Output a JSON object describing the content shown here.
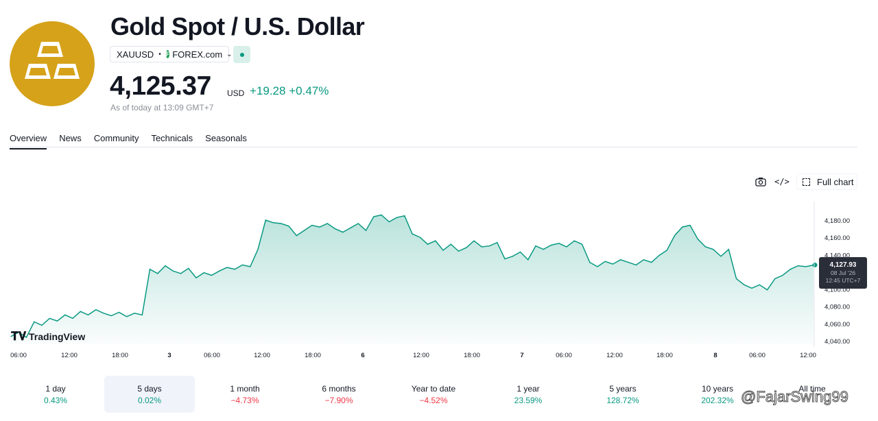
{
  "header": {
    "title": "Gold Spot / U.S. Dollar",
    "symbol": "XAUUSD",
    "exchange": "FOREX.com",
    "price": "4,125.37",
    "currency": "USD",
    "change": "+19.28",
    "change_pct": "+0.47%",
    "as_of": "As of today at 13:09 GMT+7"
  },
  "tabs": [
    "Overview",
    "News",
    "Community",
    "Technicals",
    "Seasonals"
  ],
  "toolbar": {
    "full_chart": "Full chart"
  },
  "chart_data": {
    "type": "area",
    "brand": "TradingView",
    "x_ticks": [
      "06:00",
      "12:00",
      "18:00",
      "3",
      "06:00",
      "12:00",
      "18:00",
      "6",
      "12:00",
      "18:00",
      "7",
      "06:00",
      "12:00",
      "18:00",
      "8",
      "06:00",
      "12:00"
    ],
    "y_ticks": [
      "4,180.00",
      "4,160.00",
      "4,140.00",
      "4,120.00",
      "4,100.00",
      "4,080.00",
      "4,060.00",
      "4,040.00"
    ],
    "ylim": [
      4040,
      4180
    ],
    "y_values": [
      4045,
      4050,
      4044,
      4062,
      4058,
      4066,
      4063,
      4070,
      4066,
      4074,
      4070,
      4076,
      4072,
      4069,
      4073,
      4068,
      4072,
      4070,
      4123,
      4118,
      4127,
      4121,
      4118,
      4124,
      4113,
      4119,
      4116,
      4121,
      4125,
      4123,
      4128,
      4126,
      4146,
      4180,
      4177,
      4176,
      4173,
      4162,
      4168,
      4174,
      4172,
      4176,
      4170,
      4166,
      4171,
      4176,
      4168,
      4184,
      4186,
      4178,
      4183,
      4185,
      4164,
      4160,
      4152,
      4156,
      4145,
      4152,
      4144,
      4148,
      4156,
      4149,
      4150,
      4154,
      4135,
      4138,
      4143,
      4134,
      4150,
      4146,
      4151,
      4153,
      4149,
      4156,
      4152,
      4131,
      4126,
      4132,
      4129,
      4134,
      4131,
      4128,
      4134,
      4131,
      4139,
      4145,
      4162,
      4172,
      4174,
      4158,
      4149,
      4146,
      4138,
      4146,
      4112,
      4105,
      4101,
      4105,
      4099,
      4112,
      4116,
      4123,
      4127,
      4126,
      4127.93
    ],
    "last_value": "4,127.93",
    "last_date": "08 Jul '26",
    "last_time": "12:45 UTC+7",
    "line_color": "#089981"
  },
  "periods": [
    {
      "label": "1 day",
      "value": "0.43%",
      "sign": "pos"
    },
    {
      "label": "5 days",
      "value": "0.02%",
      "sign": "pos"
    },
    {
      "label": "1 month",
      "value": "−4.73%",
      "sign": "neg"
    },
    {
      "label": "6 months",
      "value": "−7.90%",
      "sign": "neg"
    },
    {
      "label": "Year to date",
      "value": "−4.52%",
      "sign": "neg"
    },
    {
      "label": "1 year",
      "value": "23.59%",
      "sign": "pos"
    },
    {
      "label": "5 years",
      "value": "128.72%",
      "sign": "pos"
    },
    {
      "label": "10 years",
      "value": "202.32%",
      "sign": "pos"
    },
    {
      "label": "All time",
      "value": "",
      "sign": "pos"
    }
  ],
  "watermark": "@FajarSwing99",
  "icons": {
    "logo": "gold-bars-icon",
    "camera": "camera-icon",
    "embed": "code-icon",
    "fullscreen": "fullscreen-icon"
  }
}
